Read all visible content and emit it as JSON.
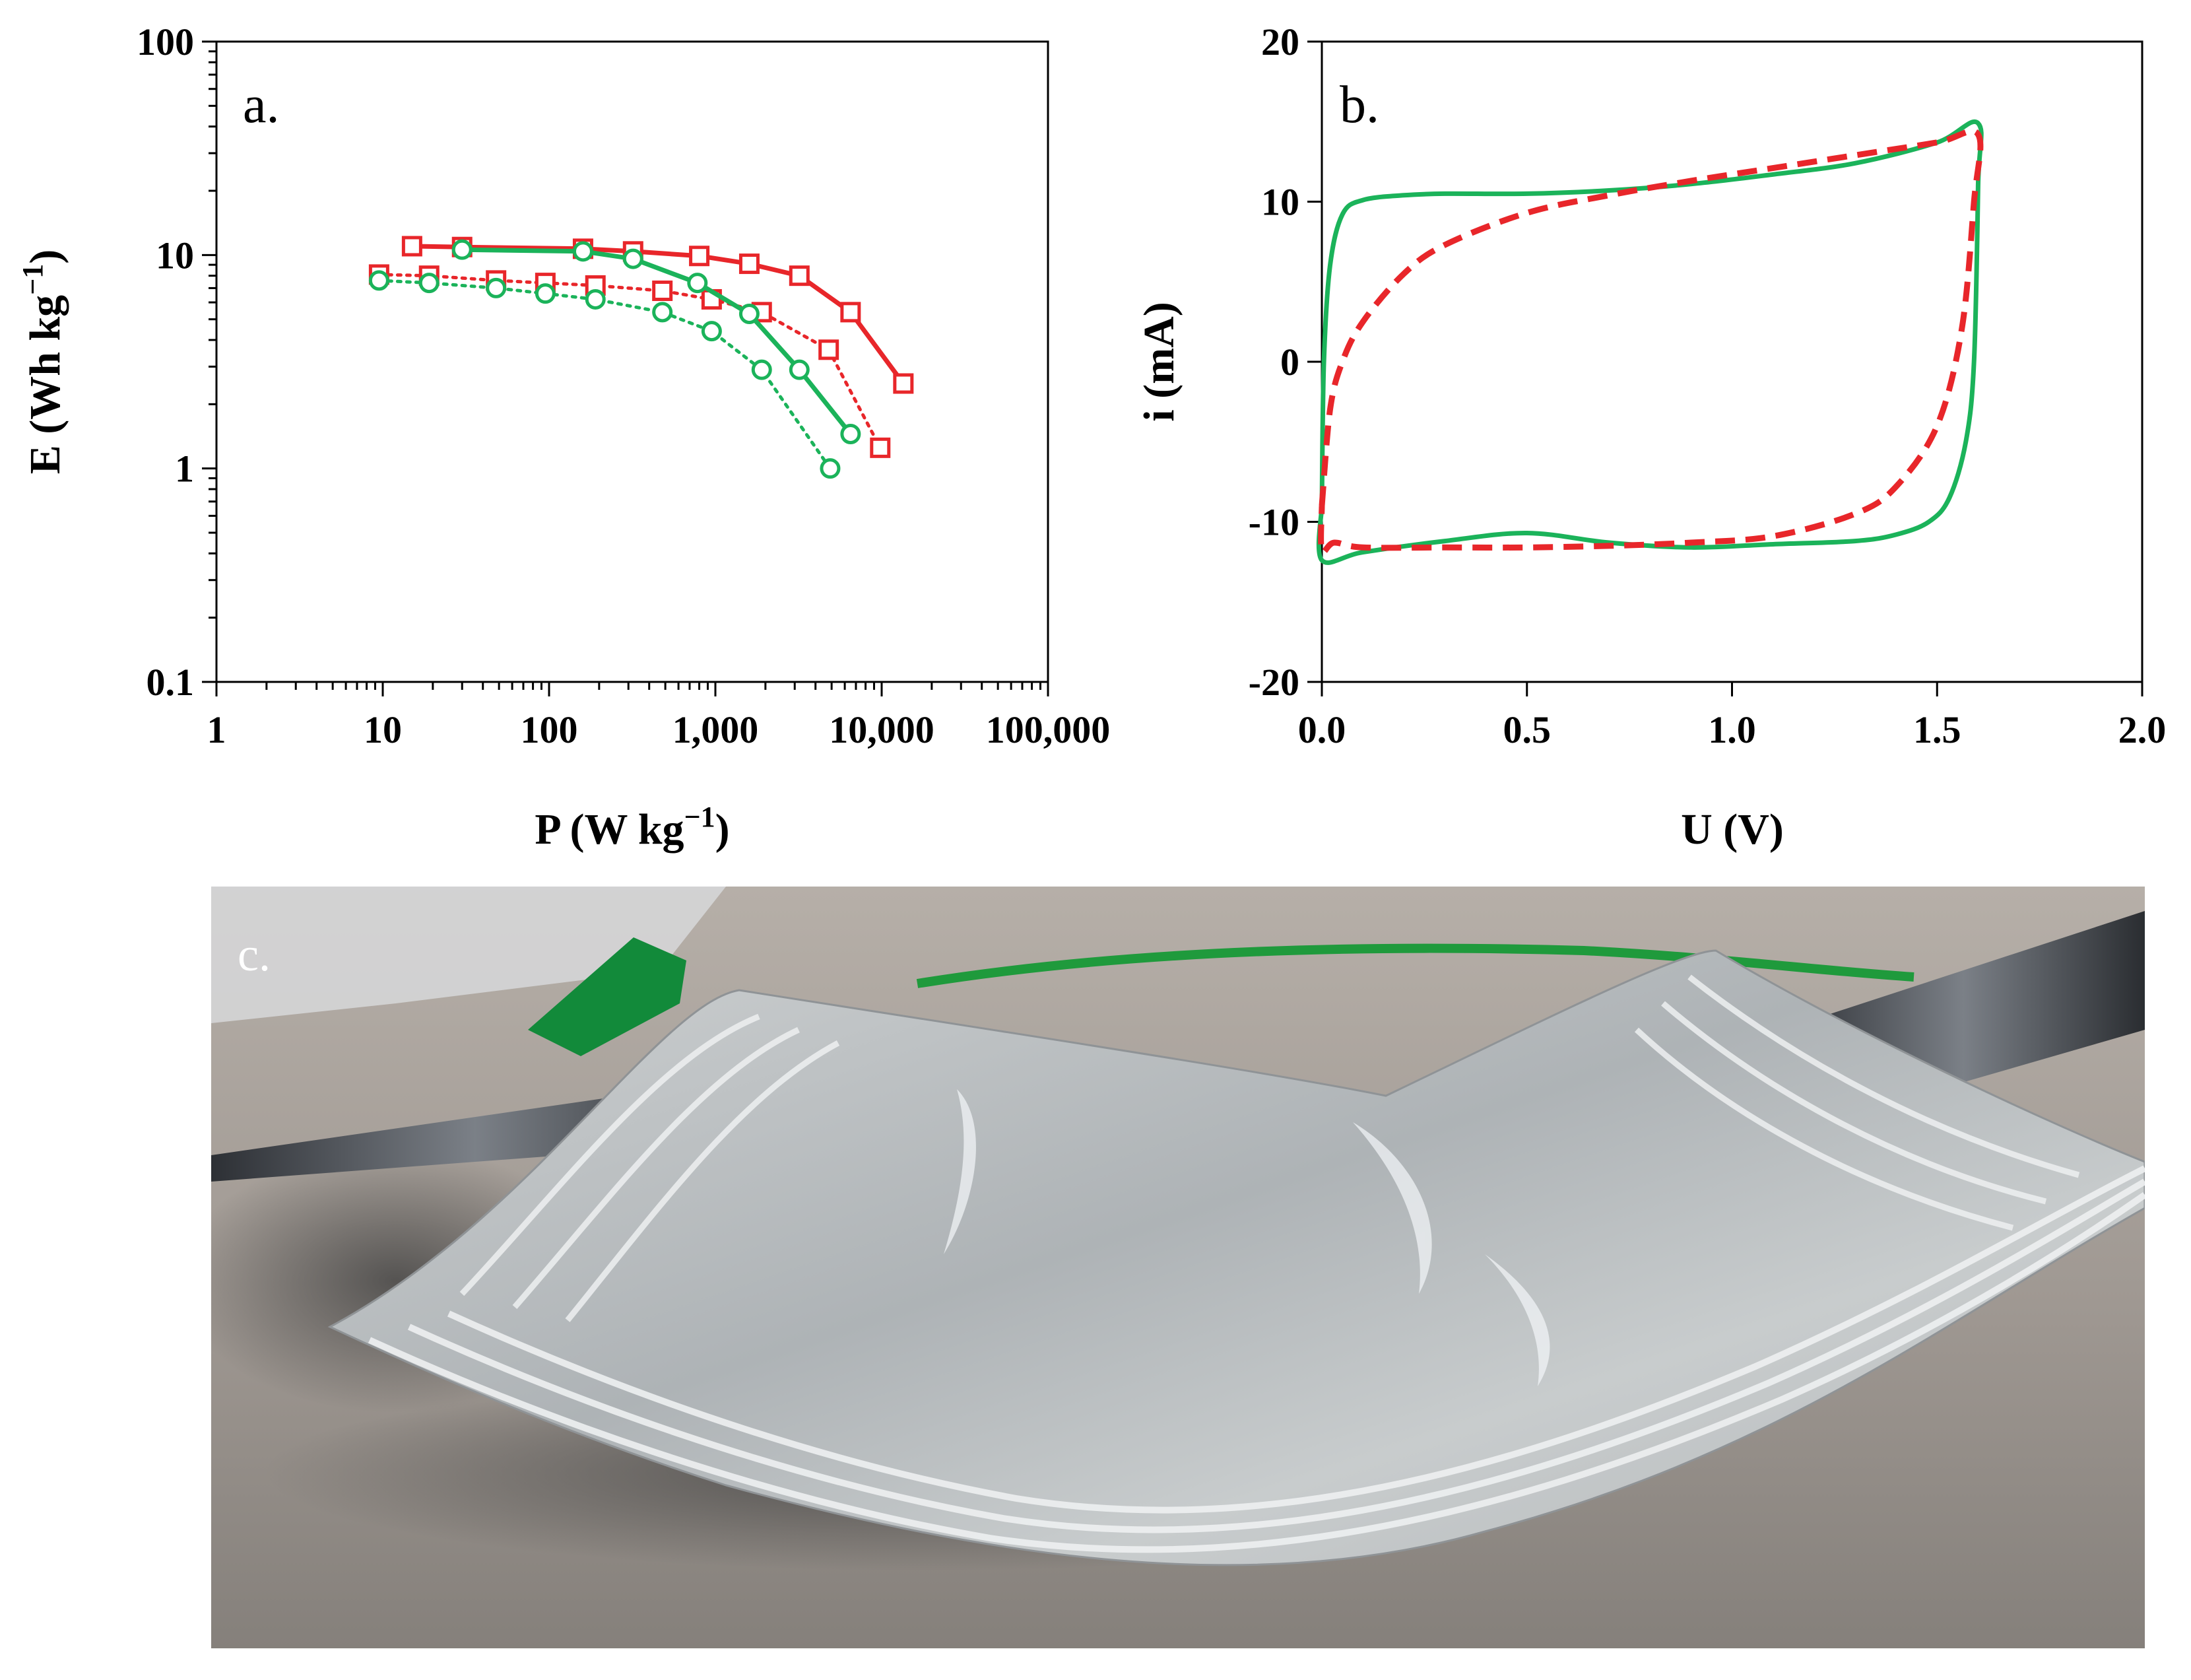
{
  "chart_data": [
    {
      "type": "line",
      "panel_label": "a.",
      "xscale": "log",
      "yscale": "log",
      "xlabel": "P (W kg",
      "xlabel_sup": "−1",
      "xlabel_end": ")",
      "ylabel": "E (Wh kg",
      "ylabel_sup": "−1",
      "ylabel_end": ")",
      "xlim": [
        1,
        100000
      ],
      "ylim": [
        0.1,
        100
      ],
      "xticks": [
        1,
        10,
        100,
        1000,
        10000,
        100000
      ],
      "xtick_labels": [
        "1",
        "10",
        "100",
        "1,000",
        "10,000",
        "100,000"
      ],
      "yticks": [
        0.1,
        1,
        10,
        100
      ],
      "ytick_labels": [
        "0.1",
        "1",
        "10",
        "100"
      ],
      "series": [
        {
          "name": "red solid squares",
          "color": "#e8262a",
          "dash": "solid",
          "marker": "square",
          "x": [
            15,
            30,
            160,
            320,
            800,
            1600,
            3200,
            6500,
            13500
          ],
          "y": [
            11.0,
            10.9,
            10.7,
            10.4,
            9.9,
            9.1,
            8.0,
            5.4,
            2.5
          ]
        },
        {
          "name": "red dotted squares",
          "color": "#e8262a",
          "dash": "dotted",
          "marker": "square",
          "x": [
            9.5,
            19,
            48,
            95,
            190,
            480,
            950,
            1900,
            4800,
            9800
          ],
          "y": [
            8.1,
            8.0,
            7.6,
            7.4,
            7.2,
            6.8,
            6.2,
            5.4,
            3.6,
            1.25
          ]
        },
        {
          "name": "green solid circles",
          "color": "#1bb35a",
          "dash": "solid",
          "marker": "circle",
          "x": [
            30,
            160,
            320,
            780,
            1600,
            3200,
            6500
          ],
          "y": [
            10.6,
            10.4,
            9.6,
            7.4,
            5.3,
            2.9,
            1.45
          ]
        },
        {
          "name": "green dotted circles",
          "color": "#1bb35a",
          "dash": "dotted",
          "marker": "circle",
          "x": [
            9.5,
            19,
            48,
            95,
            190,
            480,
            950,
            1900,
            4900
          ],
          "y": [
            7.6,
            7.4,
            7.0,
            6.6,
            6.2,
            5.4,
            4.4,
            2.9,
            1.0
          ]
        }
      ]
    },
    {
      "type": "line",
      "panel_label": "b.",
      "xlabel": "U (V)",
      "ylabel": "i (mA)",
      "xlim": [
        0,
        2.0
      ],
      "ylim": [
        -20,
        20
      ],
      "xticks": [
        0,
        0.5,
        1.0,
        1.5,
        2.0
      ],
      "xtick_labels": [
        "0.0",
        "0.5",
        "1.0",
        "1.5",
        "2.0"
      ],
      "yticks": [
        -20,
        -10,
        0,
        10,
        20
      ],
      "ytick_labels": [
        "-20",
        "-10",
        "0",
        "10",
        "20"
      ],
      "series": [
        {
          "name": "green CV loop",
          "color": "#1bb35a",
          "dash": "solid",
          "x": [
            0.0,
            0.005,
            0.02,
            0.05,
            0.1,
            0.2,
            0.3,
            0.5,
            0.7,
            0.9,
            1.1,
            1.3,
            1.5,
            1.6,
            1.6,
            1.59,
            1.57,
            1.53,
            1.48,
            1.4,
            1.3,
            1.1,
            0.9,
            0.7,
            0.5,
            0.3,
            0.1,
            0.0,
            0.0
          ],
          "y": [
            -9.0,
            0.0,
            6.0,
            9.2,
            10.1,
            10.4,
            10.5,
            10.5,
            10.7,
            11.1,
            11.7,
            12.4,
            13.7,
            14.9,
            11.0,
            0.0,
            -5.0,
            -8.5,
            -10.0,
            -10.8,
            -11.2,
            -11.4,
            -11.6,
            -11.3,
            -10.7,
            -11.2,
            -11.9,
            -12.4,
            -9.0
          ]
        },
        {
          "name": "red dashed CV loop",
          "color": "#e8262a",
          "dash": "dashed",
          "x": [
            0.0,
            0.02,
            0.05,
            0.1,
            0.2,
            0.3,
            0.5,
            0.7,
            0.9,
            1.1,
            1.3,
            1.5,
            1.6,
            1.59,
            1.56,
            1.5,
            1.4,
            1.3,
            1.1,
            0.9,
            0.7,
            0.5,
            0.3,
            0.1,
            0.03,
            0.0,
            0.0
          ],
          "y": [
            -9.0,
            -3.0,
            0.0,
            2.5,
            5.5,
            7.3,
            9.3,
            10.4,
            11.3,
            12.1,
            12.9,
            13.7,
            14.2,
            10.0,
            2.0,
            -4.0,
            -7.8,
            -9.5,
            -10.9,
            -11.3,
            -11.5,
            -11.6,
            -11.6,
            -11.6,
            -11.3,
            -11.8,
            -9.0
          ]
        }
      ]
    }
  ],
  "photo": {
    "panel_label": "c.",
    "description_icon": "pouch-cell-photo",
    "colors": {
      "background": "#a39d97",
      "pouch": "#c2c5c7",
      "wire": "#1f9a3c",
      "clip": "#128a3a",
      "tab": "#45484d"
    }
  }
}
